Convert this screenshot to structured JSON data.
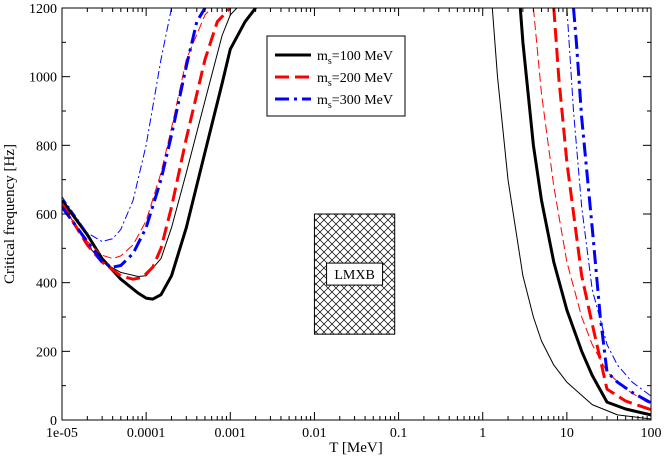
{
  "chart_data": {
    "type": "line",
    "title": "",
    "xlabel": "T [MeV]",
    "ylabel": "Critical frequency [Hz]",
    "xscale": "log",
    "xlim": [
      1e-05,
      100
    ],
    "ylim": [
      0,
      1200
    ],
    "x_ticks": [
      1e-05,
      0.0001,
      0.001,
      0.01,
      0.1,
      1,
      10,
      100
    ],
    "x_tick_labels": [
      "1e-05",
      "0.0001",
      "0.001",
      "0.01",
      "0.1",
      "1",
      "10",
      "100"
    ],
    "y_ticks": [
      0,
      200,
      400,
      600,
      800,
      1000,
      1200
    ],
    "y_tick_labels": [
      "0",
      "200",
      "400",
      "600",
      "800",
      "1000",
      "1200"
    ],
    "grid": false,
    "legend_position": "top-center",
    "legend": [
      {
        "prefix": "m",
        "sub": "s",
        "text": "=100 MeV",
        "color": "#000000",
        "dash": "solid"
      },
      {
        "prefix": "m",
        "sub": "s",
        "text": "=200 MeV",
        "color": "#ff0000",
        "dash": "dashed"
      },
      {
        "prefix": "m",
        "sub": "s",
        "text": "=300 MeV",
        "color": "#0000ff",
        "dash": "dash-dot"
      }
    ],
    "annotation": {
      "label": "LMXB",
      "x_range": [
        0.01,
        0.09
      ],
      "y_range": [
        250,
        600
      ],
      "pattern": "crosshatch"
    },
    "series": [
      {
        "name": "m_s=100 MeV (thick)",
        "color": "#000000",
        "width": 3,
        "dash": "solid",
        "x": [
          1e-05,
          2e-05,
          3e-05,
          5e-05,
          8e-05,
          0.0001,
          0.00012,
          0.00015,
          0.0002,
          0.0003,
          0.0005,
          0.0008,
          0.001,
          0.0015,
          0.002
        ],
        "y": [
          640,
          540,
          470,
          410,
          370,
          355,
          352,
          365,
          420,
          560,
          780,
          980,
          1080,
          1160,
          1200
        ]
      },
      {
        "name": "m_s=100 MeV (thick)",
        "color": "#000000",
        "width": 3,
        "dash": "solid",
        "x": [
          2.8,
          3,
          4,
          5,
          7,
          10,
          15,
          20,
          30,
          50,
          100
        ],
        "y": [
          1200,
          1100,
          800,
          640,
          460,
          320,
          200,
          130,
          52,
          32,
          15
        ]
      },
      {
        "name": "m_s=100 MeV (thin)",
        "color": "#000000",
        "width": 1,
        "dash": "solid",
        "x": [
          1e-05,
          2e-05,
          3e-05,
          5e-05,
          8e-05,
          0.0001,
          0.00015,
          0.0002,
          0.0003,
          0.0005,
          0.0008,
          0.001,
          0.0012
        ],
        "y": [
          630,
          510,
          460,
          430,
          418,
          420,
          470,
          560,
          720,
          930,
          1120,
          1180,
          1200
        ]
      },
      {
        "name": "m_s=100 MeV (thin)",
        "color": "#000000",
        "width": 1,
        "dash": "solid",
        "x": [
          1.3,
          1.5,
          2,
          3,
          4,
          5,
          7,
          10,
          20,
          40,
          100
        ],
        "y": [
          1200,
          1000,
          700,
          420,
          300,
          230,
          160,
          110,
          45,
          15,
          3
        ]
      },
      {
        "name": "m_s=200 MeV (thick)",
        "color": "#ff0000",
        "width": 3,
        "dash": "dashed",
        "x": [
          1e-05,
          2e-05,
          3e-05,
          5e-05,
          7e-05,
          9e-05,
          0.00012,
          0.00015,
          0.0002,
          0.0003,
          0.0005,
          0.0007,
          0.001
        ],
        "y": [
          630,
          510,
          460,
          420,
          410,
          415,
          445,
          500,
          620,
          820,
          1050,
          1160,
          1200
        ]
      },
      {
        "name": "m_s=200 MeV (thick)",
        "color": "#ff0000",
        "width": 3,
        "dash": "dashed",
        "x": [
          7,
          8,
          10,
          15,
          20,
          30,
          50,
          100
        ],
        "y": [
          1200,
          1000,
          750,
          420,
          280,
          90,
          55,
          30
        ]
      },
      {
        "name": "m_s=200 MeV (thin)",
        "color": "#ff0000",
        "width": 1,
        "dash": "dashed",
        "x": [
          1e-05,
          2e-05,
          3e-05,
          4e-05,
          5e-05,
          7e-05,
          0.0001,
          0.00015,
          0.0002,
          0.0003,
          0.0005,
          0.0006
        ],
        "y": [
          625,
          520,
          480,
          470,
          478,
          510,
          580,
          720,
          850,
          1050,
          1180,
          1200
        ]
      },
      {
        "name": "m_s=200 MeV (thin)",
        "color": "#ff0000",
        "width": 1,
        "dash": "dashed",
        "x": [
          4,
          5,
          7,
          10,
          15,
          20,
          30,
          50,
          100
        ],
        "y": [
          1200,
          950,
          680,
          460,
          300,
          220,
          140,
          90,
          45
        ]
      },
      {
        "name": "m_s=300 MeV (thick)",
        "color": "#0000ff",
        "width": 3,
        "dash": "dash-dot",
        "x": [
          1e-05,
          2e-05,
          3e-05,
          4e-05,
          5e-05,
          7e-05,
          0.0001,
          0.00015,
          0.0002,
          0.0003,
          0.0004,
          0.0005
        ],
        "y": [
          620,
          520,
          460,
          445,
          450,
          485,
          560,
          700,
          830,
          1030,
          1160,
          1200
        ]
      },
      {
        "name": "m_s=300 MeV (thick)",
        "color": "#0000ff",
        "width": 3,
        "dash": "dash-dot",
        "x": [
          12,
          13,
          15,
          20,
          25,
          30,
          40,
          60,
          100
        ],
        "y": [
          1200,
          1100,
          880,
          560,
          300,
          140,
          110,
          80,
          50
        ]
      },
      {
        "name": "m_s=300 MeV (thin)",
        "color": "#0000ff",
        "width": 1,
        "dash": "dash-dot",
        "x": [
          1e-05,
          2e-05,
          3e-05,
          4e-05,
          5e-05,
          7e-05,
          0.0001,
          0.00015,
          0.0002
        ],
        "y": [
          650,
          545,
          520,
          528,
          555,
          640,
          800,
          1050,
          1200
        ]
      },
      {
        "name": "m_s=300 MeV (thin)",
        "color": "#0000ff",
        "width": 1,
        "dash": "dash-dot",
        "x": [
          10,
          12,
          15,
          20,
          30,
          40,
          60,
          100
        ],
        "y": [
          1200,
          900,
          620,
          380,
          220,
          160,
          110,
          70
        ]
      }
    ]
  }
}
